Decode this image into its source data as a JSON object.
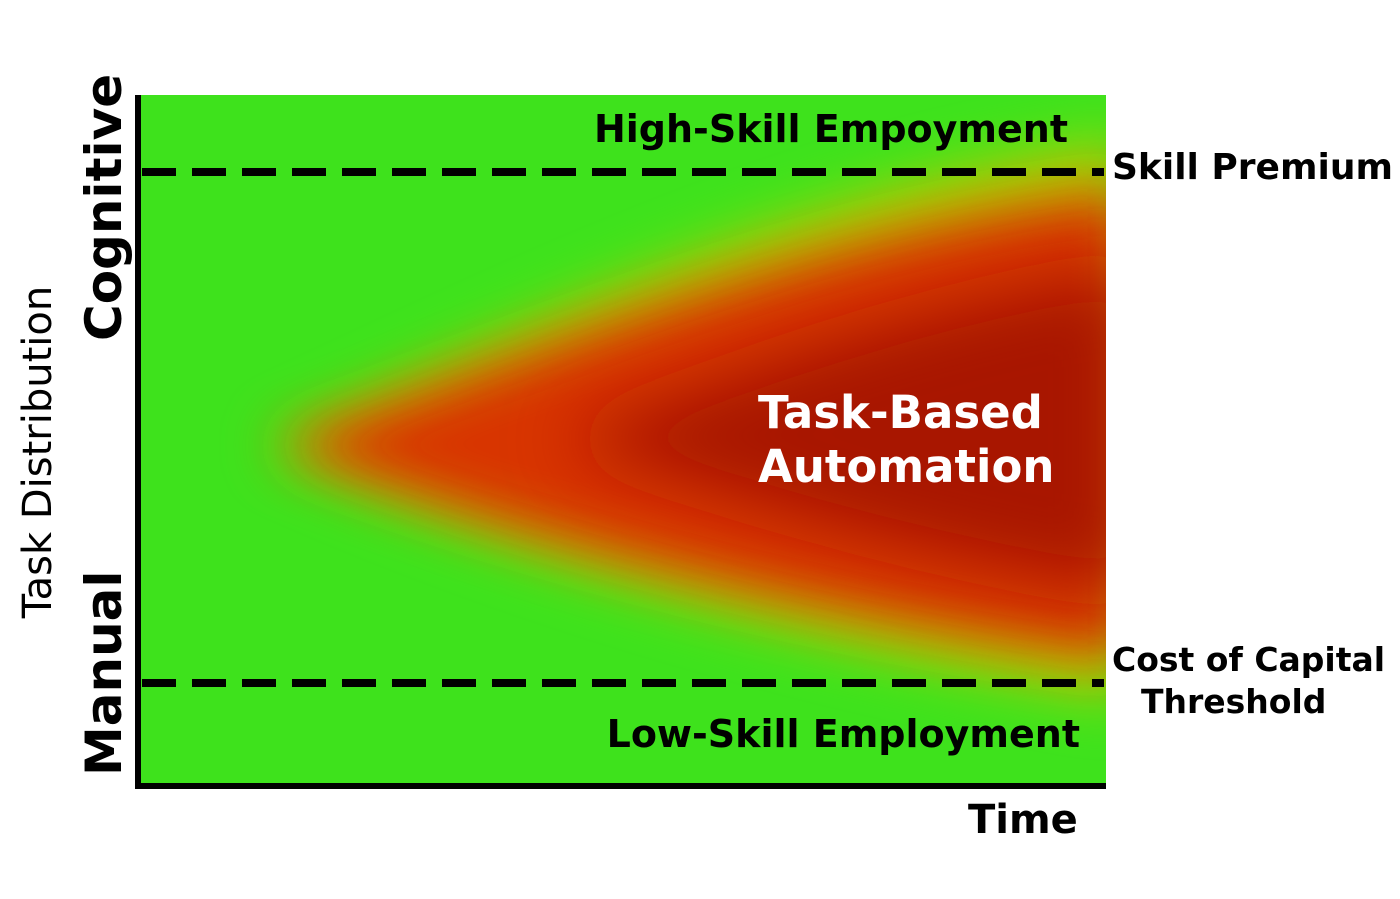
{
  "regions": {
    "top_band": "High-Skill Empoyment",
    "bottom_band": "Low-Skill Employment",
    "center_line1": "Task-Based",
    "center_line2": "Automation"
  },
  "markers": {
    "upper": "Skill Premium",
    "lower_line1": "Cost of Capital",
    "lower_line2": "Threshold"
  },
  "axes": {
    "x_label": "Time",
    "y_label": "Task Distribution",
    "y_top": "Cognitive",
    "y_bottom": "Manual"
  },
  "colors": {
    "safe": "#22e614",
    "transition": "#b6d400",
    "automation": "#d02800",
    "automation_core": "#a51200",
    "line": "#000000"
  }
}
